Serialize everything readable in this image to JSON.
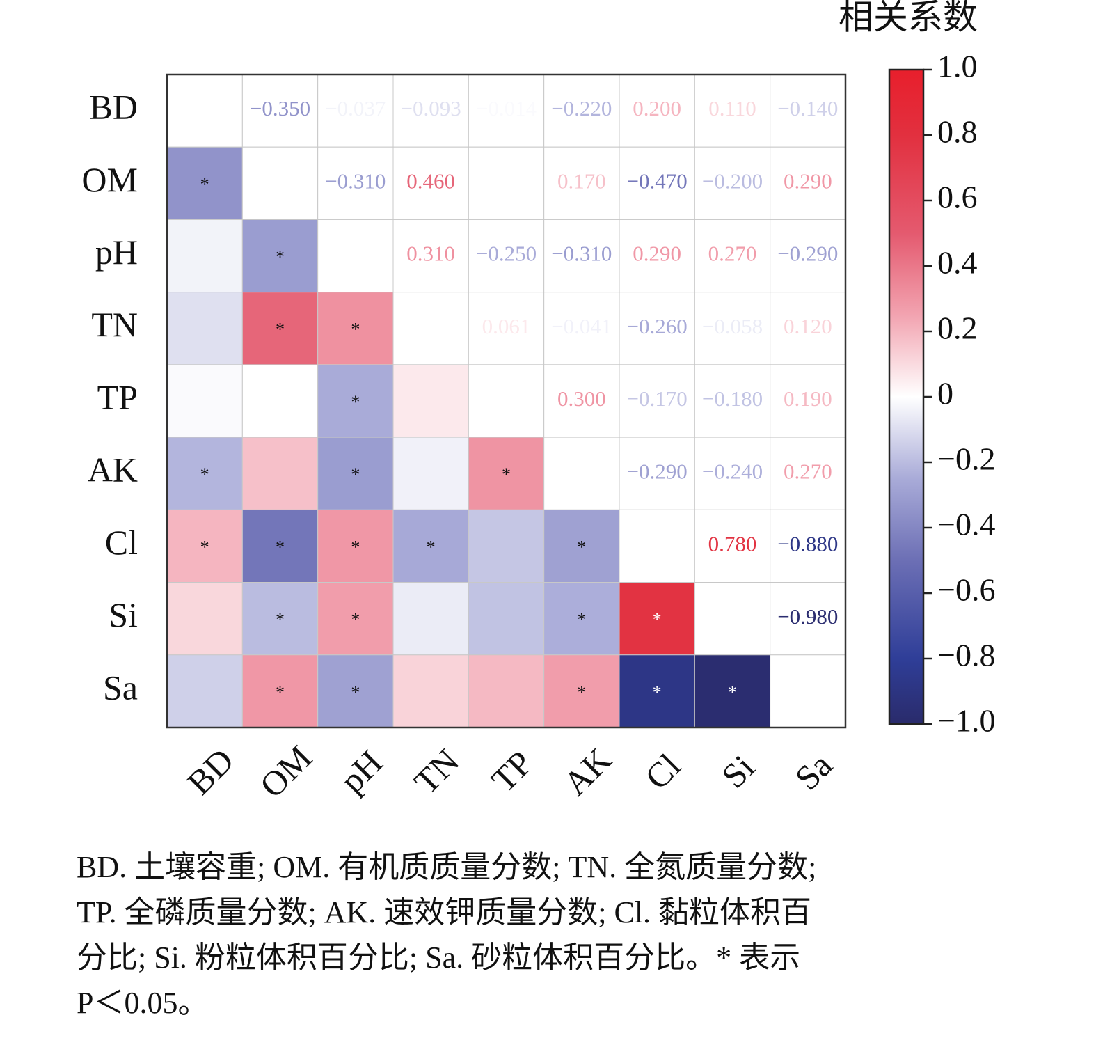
{
  "chart_data": {
    "type": "heatmap",
    "labels": [
      "BD",
      "OM",
      "pH",
      "TN",
      "TP",
      "AK",
      "Cl",
      "Si",
      "Sa"
    ],
    "values": [
      [
        null,
        -0.35,
        -0.037,
        -0.093,
        -0.014,
        -0.22,
        0.2,
        0.11,
        -0.14
      ],
      [
        null,
        null,
        -0.31,
        0.46,
        null,
        0.17,
        -0.47,
        -0.2,
        0.29
      ],
      [
        null,
        null,
        null,
        0.31,
        -0.25,
        -0.31,
        0.29,
        0.27,
        -0.29
      ],
      [
        null,
        null,
        null,
        null,
        0.061,
        -0.041,
        -0.26,
        -0.058,
        0.12
      ],
      [
        null,
        null,
        null,
        null,
        null,
        0.3,
        -0.17,
        -0.18,
        0.19
      ],
      [
        null,
        null,
        null,
        null,
        null,
        null,
        -0.29,
        -0.24,
        0.27
      ],
      [
        null,
        null,
        null,
        null,
        null,
        null,
        null,
        0.78,
        -0.88
      ],
      [
        null,
        null,
        null,
        null,
        null,
        null,
        null,
        null,
        -0.98
      ],
      [
        null,
        null,
        null,
        null,
        null,
        null,
        null,
        null,
        null
      ]
    ],
    "value_labels": [
      [
        null,
        "−0.350",
        "−0.037",
        "−0.093",
        "−0.014",
        "−0.220",
        "0.200",
        "0.110",
        "−0.140"
      ],
      [
        null,
        null,
        "−0.310",
        "0.460",
        null,
        "0.170",
        "−0.470",
        "−0.200",
        "0.290"
      ],
      [
        null,
        null,
        null,
        "0.310",
        "−0.250",
        "−0.310",
        "0.290",
        "0.270",
        "−0.290"
      ],
      [
        null,
        null,
        null,
        null,
        "0.061",
        "−0.041",
        "−0.260",
        "−0.058",
        "0.120"
      ],
      [
        null,
        null,
        null,
        null,
        null,
        "0.300",
        "−0.170",
        "−0.180",
        "0.190"
      ],
      [
        null,
        null,
        null,
        null,
        null,
        null,
        "−0.290",
        "−0.240",
        "0.270"
      ],
      [
        null,
        null,
        null,
        null,
        null,
        null,
        null,
        "0.780",
        "−0.880"
      ],
      [
        null,
        null,
        null,
        null,
        null,
        null,
        null,
        null,
        "−0.980"
      ],
      [
        null,
        null,
        null,
        null,
        null,
        null,
        null,
        null,
        null
      ]
    ],
    "significant": [
      [
        false,
        false,
        false,
        false,
        false,
        false,
        false,
        false,
        false
      ],
      [
        true,
        false,
        false,
        false,
        false,
        false,
        false,
        false,
        false
      ],
      [
        false,
        true,
        false,
        false,
        false,
        false,
        false,
        false,
        false
      ],
      [
        false,
        true,
        true,
        false,
        false,
        false,
        false,
        false,
        false
      ],
      [
        false,
        false,
        true,
        false,
        false,
        false,
        false,
        false,
        false
      ],
      [
        true,
        false,
        true,
        false,
        true,
        false,
        false,
        false,
        false
      ],
      [
        true,
        true,
        true,
        true,
        false,
        true,
        false,
        false,
        false
      ],
      [
        false,
        true,
        true,
        false,
        false,
        true,
        true,
        false,
        false
      ],
      [
        false,
        true,
        true,
        false,
        false,
        true,
        true,
        true,
        false
      ]
    ],
    "sig_symbol": "*",
    "colorbar_title": "相关系数",
    "clim": [
      -1,
      1
    ],
    "colorbar_ticks": [
      {
        "value": 1,
        "label": "1.0"
      },
      0.8,
      0.6,
      0.4,
      0.2,
      0,
      {
        "value": -0.2,
        "label": "−0.2"
      },
      {
        "value": -0.4,
        "label": "−0.4"
      },
      {
        "value": -0.6,
        "label": "−0.6"
      },
      {
        "value": -0.8,
        "label": "−0.8"
      },
      {
        "value": -1,
        "label": "−1.0"
      }
    ],
    "colormap": [
      [
        -1,
        "#2a2b6b"
      ],
      [
        -0.8,
        "#2f3e98"
      ],
      [
        -0.5,
        "#6c6fb5"
      ],
      [
        -0.25,
        "#a9abd8"
      ],
      [
        0,
        "#ffffff"
      ],
      [
        0.25,
        "#f2a3b0"
      ],
      [
        0.5,
        "#e45a6f"
      ],
      [
        0.8,
        "#e2303f"
      ],
      [
        1,
        "#e81f2c"
      ]
    ],
    "note_lines": [
      "BD. 土壤容重; OM. 有机质质量分数; TN. 全氮质量分数;",
      "TP. 全磷质量分数; AK. 速效钾质量分数; Cl. 黏粒体积百",
      "分比; Si. 粉粒体积百分比; Sa. 砂粒体积百分比。* 表示",
      "P＜0.05。"
    ]
  }
}
